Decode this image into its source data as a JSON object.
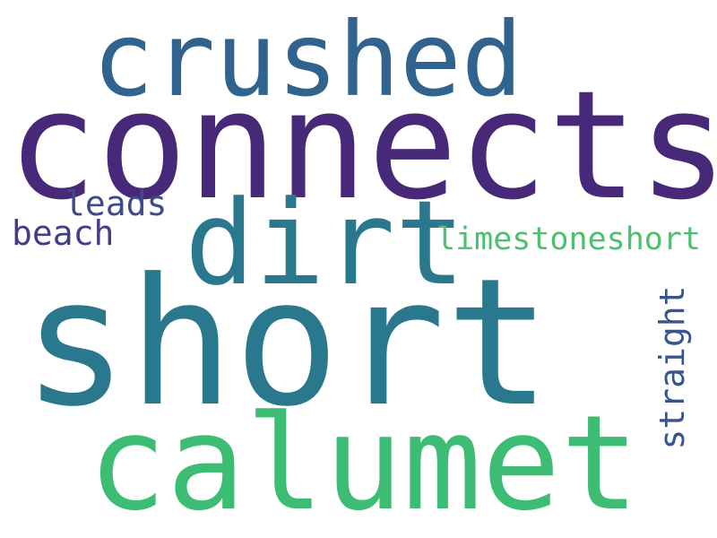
{
  "words": [
    {
      "text": "crushed",
      "color": "#30638e"
    },
    {
      "text": "connects",
      "color": "#482878"
    },
    {
      "text": "dirt",
      "color": "#2a788e"
    },
    {
      "text": "leads",
      "color": "#3e4a89"
    },
    {
      "text": "beach",
      "color": "#433e85"
    },
    {
      "text": "limestoneshort",
      "color": "#4ac16d"
    },
    {
      "text": "short",
      "color": "#2a788e"
    },
    {
      "text": "straight",
      "color": "#39568c"
    },
    {
      "text": "calumet",
      "color": "#3dbc74"
    }
  ]
}
